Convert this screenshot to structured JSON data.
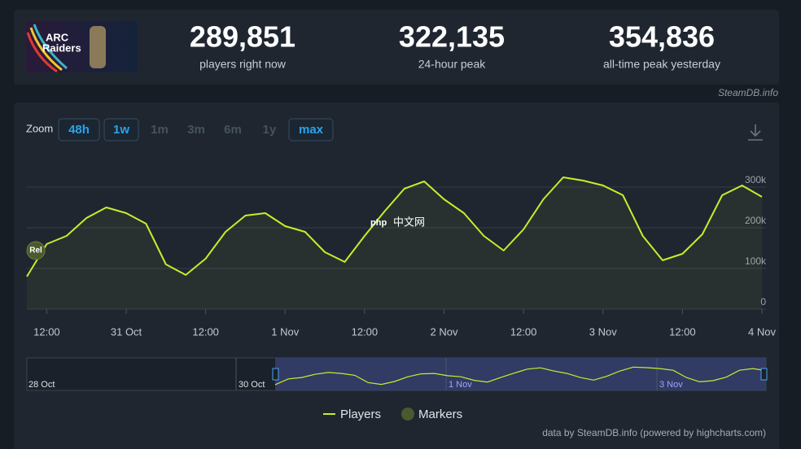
{
  "header": {
    "game_logo": [
      "ARC",
      "Raiders"
    ],
    "stats": [
      {
        "value": "289,851",
        "label": "players right now"
      },
      {
        "value": "322,135",
        "label": "24-hour peak"
      },
      {
        "value": "354,836",
        "label": "all-time peak yesterday"
      }
    ],
    "source": "SteamDB.info"
  },
  "zoom": {
    "label": "Zoom",
    "buttons": [
      {
        "text": "48h",
        "active": true
      },
      {
        "text": "1w",
        "active": true
      },
      {
        "text": "1m",
        "active": false
      },
      {
        "text": "3m",
        "active": false
      },
      {
        "text": "6m",
        "active": false
      },
      {
        "text": "1y",
        "active": false
      },
      {
        "text": "max",
        "active": true
      }
    ]
  },
  "watermark": [
    "php",
    "中文网"
  ],
  "chart_data": {
    "type": "line",
    "categories": [
      null,
      "12:00",
      null,
      null,
      null,
      "31 Oct",
      null,
      null,
      null,
      "12:00",
      null,
      null,
      null,
      "1 Nov",
      null,
      null,
      null,
      "12:00",
      null,
      null,
      null,
      "2 Nov",
      null,
      null,
      null,
      "12:00",
      null,
      null,
      null,
      "3 Nov",
      null,
      null,
      null,
      "12:00",
      null,
      null,
      null,
      "4 Nov"
    ],
    "series": [
      {
        "name": "Players",
        "color": "#c4ef2c",
        "values": [
          80000,
          160000,
          180000,
          224000,
          250000,
          236000,
          210000,
          110000,
          84000,
          124000,
          190000,
          230000,
          236000,
          204000,
          190000,
          140000,
          116000,
          180000,
          240000,
          296000,
          314000,
          270000,
          236000,
          180000,
          144000,
          196000,
          270000,
          324000,
          316000,
          304000,
          280000,
          180000,
          120000,
          136000,
          184000,
          280000,
          304000,
          276000
        ]
      }
    ],
    "markers": {
      "name": "Markers",
      "color": "#4b5a2e",
      "annotation": "Rel"
    },
    "ylim": [
      0,
      384000
    ],
    "yticks": [
      0,
      {
        "value": 100000,
        "label": "100k"
      },
      {
        "value": 200000,
        "label": "200k"
      },
      {
        "value": 300000,
        "label": "300k"
      }
    ],
    "grid": true,
    "navigator_labels": [
      "28 Oct",
      "30 Oct",
      "1 Nov",
      "3 Nov"
    ],
    "credits": "data by SteamDB.info (powered by highcharts.com)"
  }
}
